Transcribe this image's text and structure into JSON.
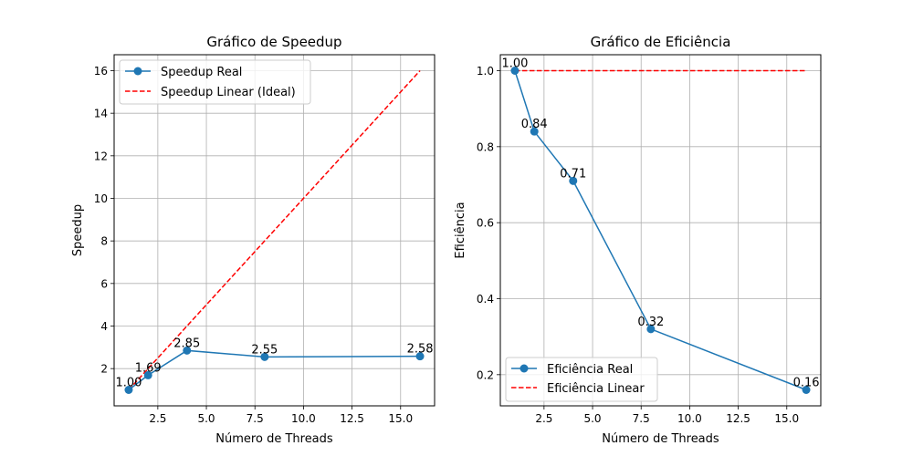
{
  "chart_data": [
    {
      "type": "line",
      "title": "Gráfico de Speedup",
      "xlabel": "Número de Threads",
      "ylabel": "Speedup",
      "x": [
        1,
        2,
        4,
        8,
        16
      ],
      "xlim": [
        0.25,
        16.75
      ],
      "ylim": [
        0.25,
        16.75
      ],
      "xticks": [
        2.5,
        5.0,
        7.5,
        10.0,
        12.5,
        15.0
      ],
      "xtick_labels": [
        "2.5",
        "5.0",
        "7.5",
        "10.0",
        "12.5",
        "15.0"
      ],
      "yticks": [
        2,
        4,
        6,
        8,
        10,
        12,
        14,
        16
      ],
      "ytick_labels": [
        "2",
        "4",
        "6",
        "8",
        "10",
        "12",
        "14",
        "16"
      ],
      "grid": true,
      "legend_position": "top-left",
      "series": [
        {
          "name": "Speedup Real",
          "values": [
            1.0,
            1.69,
            2.85,
            2.55,
            2.58
          ],
          "labels": [
            "1.00",
            "1.69",
            "2.85",
            "2.55",
            "2.58"
          ],
          "color": "#1f77b4",
          "style": "solid-marker"
        },
        {
          "name": "Speedup Linear (Ideal)",
          "values": [
            1,
            2,
            4,
            8,
            16
          ],
          "color": "#ff0000",
          "style": "dashed"
        }
      ]
    },
    {
      "type": "line",
      "title": "Gráfico de Eficiência",
      "xlabel": "Número de Threads",
      "ylabel": "Eficiência",
      "x": [
        1,
        2,
        4,
        8,
        16
      ],
      "xlim": [
        0.25,
        16.75
      ],
      "ylim": [
        0.118,
        1.042
      ],
      "xticks": [
        2.5,
        5.0,
        7.5,
        10.0,
        12.5,
        15.0
      ],
      "xtick_labels": [
        "2.5",
        "5.0",
        "7.5",
        "10.0",
        "12.5",
        "15.0"
      ],
      "yticks": [
        0.2,
        0.4,
        0.6,
        0.8,
        1.0
      ],
      "ytick_labels": [
        "0.2",
        "0.4",
        "0.6",
        "0.8",
        "1.0"
      ],
      "grid": true,
      "legend_position": "bottom-left",
      "series": [
        {
          "name": "Eficiência Real",
          "values": [
            1.0,
            0.84,
            0.71,
            0.32,
            0.16
          ],
          "labels": [
            "1.00",
            "0.84",
            "0.71",
            "0.32",
            "0.16"
          ],
          "color": "#1f77b4",
          "style": "solid-marker"
        },
        {
          "name": "Eficiência Linear",
          "values": [
            1,
            1,
            1,
            1,
            1
          ],
          "color": "#ff0000",
          "style": "dashed"
        }
      ]
    }
  ]
}
